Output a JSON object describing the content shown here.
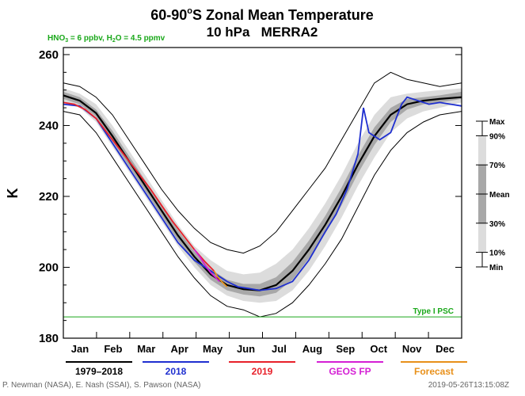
{
  "chart_data": {
    "type": "line",
    "title": "60-90°S Zonal Mean Temperature",
    "title_parts": {
      "before": "60-90",
      "sup": "o",
      "after": "S Zonal Mean Temperature"
    },
    "subtitle": "10 hPa   MERRA2",
    "composition_note": {
      "hno3": "HNO",
      "hno3_sub": "3",
      "hno3_value": " = 6 ppbv, H",
      "h2o_sub": "2",
      "h2o_value": "O = 4.5 ppmv"
    },
    "ylabel": "K",
    "ylim": [
      180,
      262
    ],
    "yticks": [
      180,
      200,
      220,
      240,
      260
    ],
    "xlim": [
      0,
      365
    ],
    "months": [
      "Jan",
      "Feb",
      "Mar",
      "Apr",
      "May",
      "Jun",
      "Jul",
      "Aug",
      "Sep",
      "Oct",
      "Nov",
      "Dec"
    ],
    "psc_threshold": {
      "value": 186,
      "label": "Type I PSC"
    },
    "percentile_scale": {
      "labels": [
        {
          "text": "Max",
          "pos": 0
        },
        {
          "text": "90%",
          "pos": 0.1
        },
        {
          "text": "70%",
          "pos": 0.3
        },
        {
          "text": "Mean",
          "pos": 0.5
        },
        {
          "text": "30%",
          "pos": 0.7
        },
        {
          "text": "10%",
          "pos": 0.9
        },
        {
          "text": "Min",
          "pos": 1
        }
      ],
      "band_colors": {
        "outer": "#dcdcdc",
        "inner": "#a8a8a8",
        "core": "#707070"
      }
    },
    "climatology": {
      "name": "1979–2018",
      "color": "#000000",
      "days": [
        0,
        15,
        30,
        45,
        60,
        75,
        90,
        105,
        120,
        135,
        150,
        165,
        180,
        195,
        210,
        225,
        240,
        255,
        270,
        285,
        300,
        315,
        330,
        345,
        365
      ],
      "mean": [
        248.5,
        247,
        243.5,
        237,
        230,
        223,
        216,
        209,
        203,
        198,
        195,
        193.8,
        193.5,
        195,
        199,
        205,
        212,
        220,
        229,
        237,
        243,
        246,
        247,
        247.5,
        248
      ],
      "max": [
        252,
        251,
        248,
        243,
        236,
        229,
        222,
        216,
        211,
        207,
        205,
        204,
        206,
        210,
        216,
        222,
        228,
        236,
        244,
        252,
        255,
        253,
        252,
        251,
        252
      ],
      "min": [
        244,
        243,
        238,
        231,
        224,
        217,
        210,
        203,
        197,
        192,
        189,
        188,
        186,
        187,
        190,
        195,
        201,
        208,
        217,
        226,
        233,
        238,
        241,
        243,
        244
      ],
      "p90": [
        250.5,
        249,
        246,
        240,
        233,
        226,
        219,
        212,
        206,
        202,
        199,
        198,
        198.5,
        201,
        205,
        211,
        218,
        226,
        235,
        243,
        248,
        249,
        249.5,
        250,
        250.5
      ],
      "p70": [
        249.5,
        248,
        244.5,
        238.5,
        231.5,
        224.5,
        217.5,
        210.5,
        204.5,
        199.5,
        196.5,
        195.3,
        195.3,
        197.2,
        201.5,
        207.5,
        214.5,
        222.5,
        231.5,
        239.5,
        245,
        247.5,
        248,
        248.5,
        249.5
      ],
      "p30": [
        247.5,
        246,
        242.5,
        235.5,
        228.5,
        221.5,
        214.5,
        207.5,
        201.5,
        196.5,
        193.5,
        192.3,
        191.8,
        192.8,
        196.5,
        202.5,
        209.5,
        217.5,
        226.5,
        234.5,
        241,
        244.5,
        246,
        246.5,
        247.5
      ],
      "p10": [
        246.5,
        245,
        241,
        234,
        227,
        220,
        213,
        206,
        200,
        195,
        192,
        190.5,
        190,
        190.5,
        193.5,
        199,
        206,
        214,
        223,
        231,
        238,
        242,
        244,
        245,
        246.5
      ]
    },
    "series": [
      {
        "name": "2018",
        "color": "#1f2fd0",
        "days": [
          0,
          15,
          30,
          45,
          60,
          75,
          90,
          105,
          120,
          135,
          150,
          160,
          170,
          180,
          195,
          210,
          225,
          240,
          250,
          260,
          270,
          275,
          280,
          290,
          300,
          310,
          315,
          325,
          335,
          345,
          355,
          365
        ],
        "values": [
          246,
          245.5,
          242,
          235,
          228,
          221,
          214,
          207,
          202,
          199,
          196,
          194.5,
          194,
          193.5,
          194,
          196,
          202,
          210,
          215,
          222,
          232,
          245,
          238,
          236,
          238,
          246,
          248,
          247,
          246,
          246.5,
          246,
          245.5
        ]
      },
      {
        "name": "2019",
        "color": "#e8202a",
        "days": [
          0,
          10,
          20,
          30,
          40,
          50,
          60,
          70,
          80,
          90,
          100,
          110,
          120,
          130,
          138
        ],
        "values": [
          246.5,
          246,
          244.5,
          242,
          238,
          234,
          230,
          226,
          222,
          217.5,
          213,
          209,
          205,
          201.5,
          199
        ]
      },
      {
        "name": "GEOS FP",
        "color": "#d41fd4",
        "days": [
          120,
          125,
          130,
          135,
          140,
          143
        ],
        "values": [
          205,
          203,
          200.5,
          198.5,
          197,
          196
        ]
      },
      {
        "name": "Forecast",
        "color": "#e8901a",
        "days": [
          138,
          141,
          145,
          150
        ],
        "values": [
          199,
          197.5,
          196,
          194.5
        ]
      }
    ],
    "legend_placement": "bottom"
  },
  "credits": {
    "authors": "P. Newman (NASA), E. Nash (SSAI), S. Pawson (NASA)",
    "timestamp": "2019-05-26T13:15:08Z"
  }
}
